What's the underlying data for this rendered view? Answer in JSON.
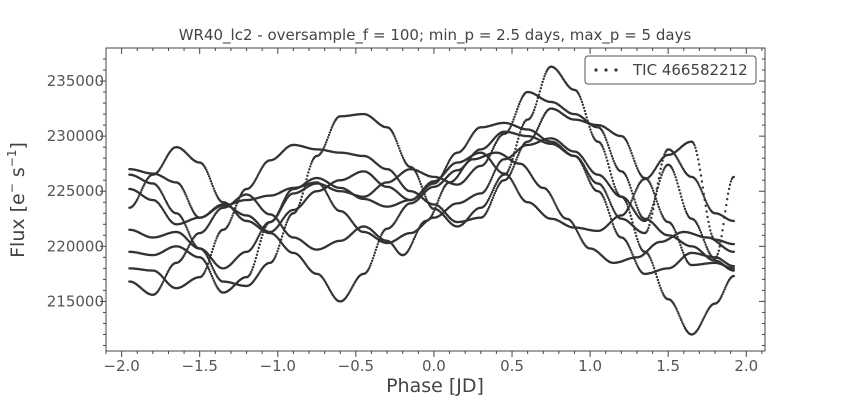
{
  "chart_data": {
    "type": "scatter",
    "title": "WR40_lc2 - oversample_f = 100; min_p = 2.5 days, max_p = 5 days",
    "xlabel": "Phase [JD]",
    "ylabel": "Flux [e",
    "ylabel_super1": "−",
    "ylabel_mid": " s",
    "ylabel_super2": "−1",
    "ylabel_end": "]",
    "xlim": [
      -2.1,
      2.12
    ],
    "ylim": [
      210500,
      238000
    ],
    "xticks": [
      -2.0,
      -1.5,
      -1.0,
      -0.5,
      0.0,
      0.5,
      1.0,
      1.5,
      2.0
    ],
    "xtick_labels": [
      "−2.0",
      "−1.5",
      "−1.0",
      "−0.5",
      "0.0",
      "0.5",
      "1.0",
      "1.5",
      "2.0"
    ],
    "yticks": [
      215000,
      220000,
      225000,
      230000,
      235000
    ],
    "ytick_labels": [
      "215000",
      "220000",
      "225000",
      "230000",
      "235000"
    ],
    "legend_position": "top-right",
    "marker_color": "#333333",
    "series": [
      {
        "name": "TIC 466582212",
        "cycles": [
          {
            "x": [
              -1.95,
              -1.8,
              -1.65,
              -1.5,
              -1.35,
              -1.2,
              -1.05,
              -0.9,
              -0.75,
              -0.6,
              -0.45,
              -0.3,
              -0.2
            ],
            "y": [
              216800,
              215600,
              218500,
              221200,
              223500,
              224700,
              222900,
              220800,
              219700,
              220500,
              221800,
              220500,
              219200
            ]
          },
          {
            "x": [
              -0.2,
              -0.05,
              0.1,
              0.25,
              0.4,
              0.55,
              0.7,
              0.85,
              1.0,
              1.15,
              1.3,
              1.45,
              1.6,
              1.75,
              1.92
            ],
            "y": [
              219200,
              222300,
              225800,
              227900,
              228500,
              227500,
              225300,
              222500,
              219800,
              218500,
              219000,
              220400,
              221300,
              220800,
              219500
            ]
          },
          {
            "x": [
              -1.95,
              -1.8,
              -1.65,
              -1.5,
              -1.35,
              -1.2,
              -1.05,
              -0.9,
              -0.75,
              -0.6,
              -0.45,
              -0.3,
              -0.15,
              0.0,
              0.15,
              0.3,
              0.45,
              0.6,
              0.75,
              0.9,
              1.05,
              1.2,
              1.35,
              1.5,
              1.65,
              1.8,
              1.92
            ],
            "y": [
              226500,
              225700,
              223000,
              219800,
              218000,
              219500,
              222200,
              225200,
              226200,
              225300,
              224300,
              223600,
              224200,
              225700,
              228500,
              230800,
              231200,
              230600,
              229500,
              228200,
              225000,
              220800,
              217500,
              218000,
              219400,
              219000,
              218200
            ]
          },
          {
            "x": [
              -1.95,
              -1.8,
              -1.65,
              -1.5,
              -1.35,
              -1.2,
              -1.05,
              -0.9,
              -0.75,
              -0.6,
              -0.45,
              -0.3,
              -0.15,
              0.0,
              0.15,
              0.3,
              0.45,
              0.6,
              0.75,
              0.9,
              1.05,
              1.2,
              1.35,
              1.5,
              1.65,
              1.8,
              1.92
            ],
            "y": [
              221500,
              220800,
              221300,
              219800,
              216800,
              216400,
              218500,
              223000,
              228200,
              231800,
              232000,
              230800,
              227200,
              223400,
              221800,
              223500,
              226500,
              231500,
              236300,
              234200,
              229500,
              224500,
              219500,
              215200,
              212000,
              214800,
              217300
            ]
          },
          {
            "x": [
              -1.95,
              -1.8,
              -1.65,
              -1.5,
              -1.35,
              -1.2,
              -1.05,
              -0.9,
              -0.75,
              -0.6,
              -0.45,
              -0.3,
              -0.15,
              0.0,
              0.15,
              0.3,
              0.45,
              0.6,
              0.75,
              0.9,
              1.05,
              1.2,
              1.35,
              1.5,
              1.65,
              1.8,
              1.92
            ],
            "y": [
              219500,
              219200,
              220000,
              219000,
              215800,
              217200,
              222200,
              224800,
              225700,
              225000,
              224500,
              225800,
              227000,
              226300,
              225600,
              227300,
              230200,
              234000,
              233100,
              232000,
              230800,
              226800,
              222500,
              221000,
              220000,
              218700,
              217800
            ]
          },
          {
            "x": [
              -1.95,
              -1.8,
              -1.65,
              -1.5,
              -1.35,
              -1.2,
              -1.05,
              -0.9,
              -0.75,
              -0.6,
              -0.45,
              -0.3,
              -0.15,
              0.0,
              0.15,
              0.3,
              0.45,
              0.6,
              0.75,
              0.9,
              1.05,
              1.2,
              1.35,
              1.5,
              1.65,
              1.8,
              1.92
            ],
            "y": [
              223500,
              226500,
              229000,
              227600,
              224000,
              222300,
              221200,
              219400,
              217500,
              215000,
              217500,
              221600,
              223900,
              225400,
              226900,
              228800,
              230400,
              230000,
              229300,
              228200,
              225700,
              222500,
              221200,
              228800,
              226300,
              223000,
              222300
            ]
          },
          {
            "x": [
              -1.95,
              -1.8,
              -1.65,
              -1.5,
              -1.35,
              -1.2,
              -1.05,
              -0.9,
              -0.75,
              -0.6,
              -0.45,
              -0.3,
              -0.15,
              0.0,
              0.15,
              0.3,
              0.45,
              0.6,
              0.75,
              0.9,
              1.05,
              1.2,
              1.35,
              1.5,
              1.65,
              1.8,
              1.92
            ],
            "y": [
              218000,
              217800,
              216200,
              217200,
              221500,
              225200,
              227800,
              229200,
              228800,
              228500,
              228200,
              227000,
              225000,
              223800,
              222200,
              222600,
              226000,
              229500,
              232500,
              231500,
              231000,
              230000,
              226200,
              222200,
              218300,
              218500,
              218000
            ]
          },
          {
            "x": [
              -1.95,
              -1.8,
              -1.65,
              -1.5,
              -1.35,
              -1.2,
              -1.05,
              -0.9,
              -0.75,
              -0.6,
              -0.45,
              -0.3,
              -0.15,
              0.0,
              0.15,
              0.3,
              0.45,
              0.6,
              0.75,
              0.9,
              1.05,
              1.2,
              1.35,
              1.5,
              1.65,
              1.8,
              1.92
            ],
            "y": [
              225200,
              224200,
              222000,
              222600,
              223800,
              222800,
              221300,
              223300,
              225000,
              226000,
              226800,
              225400,
              224200,
              225900,
              227600,
              228500,
              226600,
              224000,
              222500,
              221700,
              221400,
              222800,
              226100,
              228300,
              229500,
              220600,
              220200
            ]
          },
          {
            "x": [
              -1.95,
              -1.8,
              -1.65,
              -1.5,
              -1.35,
              -1.2,
              -1.05,
              -0.9,
              -0.75,
              -0.6,
              -0.45,
              -0.3,
              -0.15,
              0.0,
              0.15,
              0.3,
              0.45,
              0.6,
              0.75,
              0.9,
              1.05,
              1.2,
              1.35,
              1.5,
              1.65,
              1.8,
              1.92
            ],
            "y": [
              227000,
              226600,
              225800,
              222600,
              223700,
              224200,
              224600,
              225300,
              225800,
              223200,
              221300,
              220300,
              221200,
              222600,
              223900,
              224800,
              227900,
              229200,
              229800,
              228600,
              226500,
              224500,
              222300,
              227400,
              222500,
              218900,
              226300
            ]
          }
        ]
      }
    ]
  }
}
